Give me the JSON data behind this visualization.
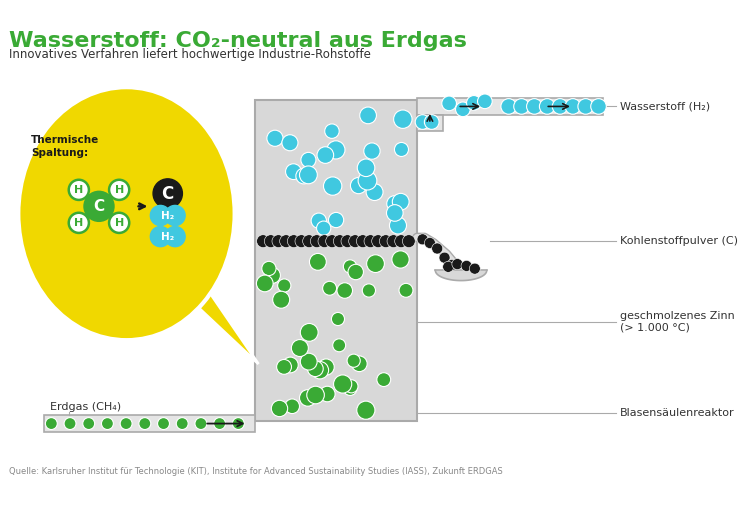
{
  "title": "Wasserstoff: CO₂-neutral aus Erdgas",
  "subtitle": "Innovatives Verfahren liefert hochwertige Industrie-Rohstoffe",
  "source": "Quelle: Karlsruher Institut für Technologie (KIT), Institute for Advanced Sustainability Studies (IASS), Zukunft ERDGAS",
  "label_wasserstoff": "Wasserstoff (H₂)",
  "label_kohlenstoff": "Kohlenstoffpulver (C)",
  "label_zinn": "geschmolzenes Zinn\n(> 1.000 °C)",
  "label_reaktor": "Blasensäulenreaktor",
  "label_erdgas": "Erdgas (CH₄)",
  "label_thermisch": "Thermische\nSpaltung:",
  "color_green": "#3aaa35",
  "color_cyan": "#40c8e0",
  "color_black": "#1a1a1a",
  "color_yellow": "#f0d800",
  "color_gray_reactor": "#d8d8d8",
  "color_title": "#3aaa35",
  "color_text": "#333333",
  "color_line": "#aaaaaa",
  "bg_color": "#ffffff"
}
